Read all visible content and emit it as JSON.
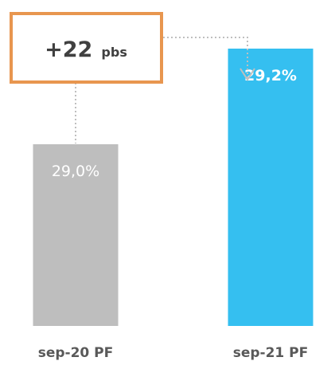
{
  "chart_data": {
    "type": "bar",
    "categories": [
      "sep-20 PF",
      "sep-21 PF"
    ],
    "values": [
      29.0,
      29.2
    ],
    "value_labels": [
      "29,0%",
      "29,2%"
    ],
    "bar_colors": [
      "#BEBEBE",
      "#35BFF0"
    ],
    "value_label_colors": [
      "#FFFFFF",
      "#FFFFFF"
    ],
    "title": "",
    "xlabel": "",
    "ylabel": "",
    "annotation": {
      "value": "+22",
      "unit": "pbs",
      "border_color": "#E8964F",
      "connector_color": "#BFBFBF"
    }
  }
}
